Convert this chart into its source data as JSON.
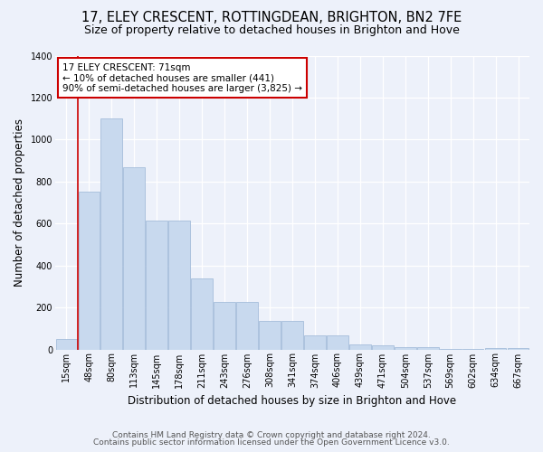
{
  "title": "17, ELEY CRESCENT, ROTTINGDEAN, BRIGHTON, BN2 7FE",
  "subtitle": "Size of property relative to detached houses in Brighton and Hove",
  "xlabel": "Distribution of detached houses by size in Brighton and Hove",
  "ylabel": "Number of detached properties",
  "footnote1": "Contains HM Land Registry data © Crown copyright and database right 2024.",
  "footnote2": "Contains public sector information licensed under the Open Government Licence v3.0.",
  "bar_labels": [
    "15sqm",
    "48sqm",
    "80sqm",
    "113sqm",
    "145sqm",
    "178sqm",
    "211sqm",
    "243sqm",
    "276sqm",
    "308sqm",
    "341sqm",
    "374sqm",
    "406sqm",
    "439sqm",
    "471sqm",
    "504sqm",
    "537sqm",
    "569sqm",
    "602sqm",
    "634sqm",
    "667sqm"
  ],
  "bar_values": [
    50,
    750,
    1100,
    870,
    615,
    615,
    340,
    225,
    225,
    135,
    135,
    68,
    68,
    25,
    18,
    10,
    10,
    2,
    2,
    5,
    5
  ],
  "bar_color": "#c8d9ee",
  "bar_edge_color": "#9ab5d5",
  "annotation_text": "17 ELEY CRESCENT: 71sqm\n← 10% of detached houses are smaller (441)\n90% of semi-detached houses are larger (3,825) →",
  "vline_x": 1.5,
  "annotation_box_color": "#ffffff",
  "annotation_box_edge": "#cc0000",
  "vline_color": "#cc0000",
  "ylim": [
    0,
    1400
  ],
  "yticks": [
    0,
    200,
    400,
    600,
    800,
    1000,
    1200,
    1400
  ],
  "bg_color": "#edf1fa",
  "grid_color": "#ffffff",
  "title_fontsize": 10.5,
  "subtitle_fontsize": 9,
  "xlabel_fontsize": 8.5,
  "ylabel_fontsize": 8.5,
  "tick_fontsize": 7,
  "annot_fontsize": 7.5,
  "footnote_fontsize": 6.5
}
